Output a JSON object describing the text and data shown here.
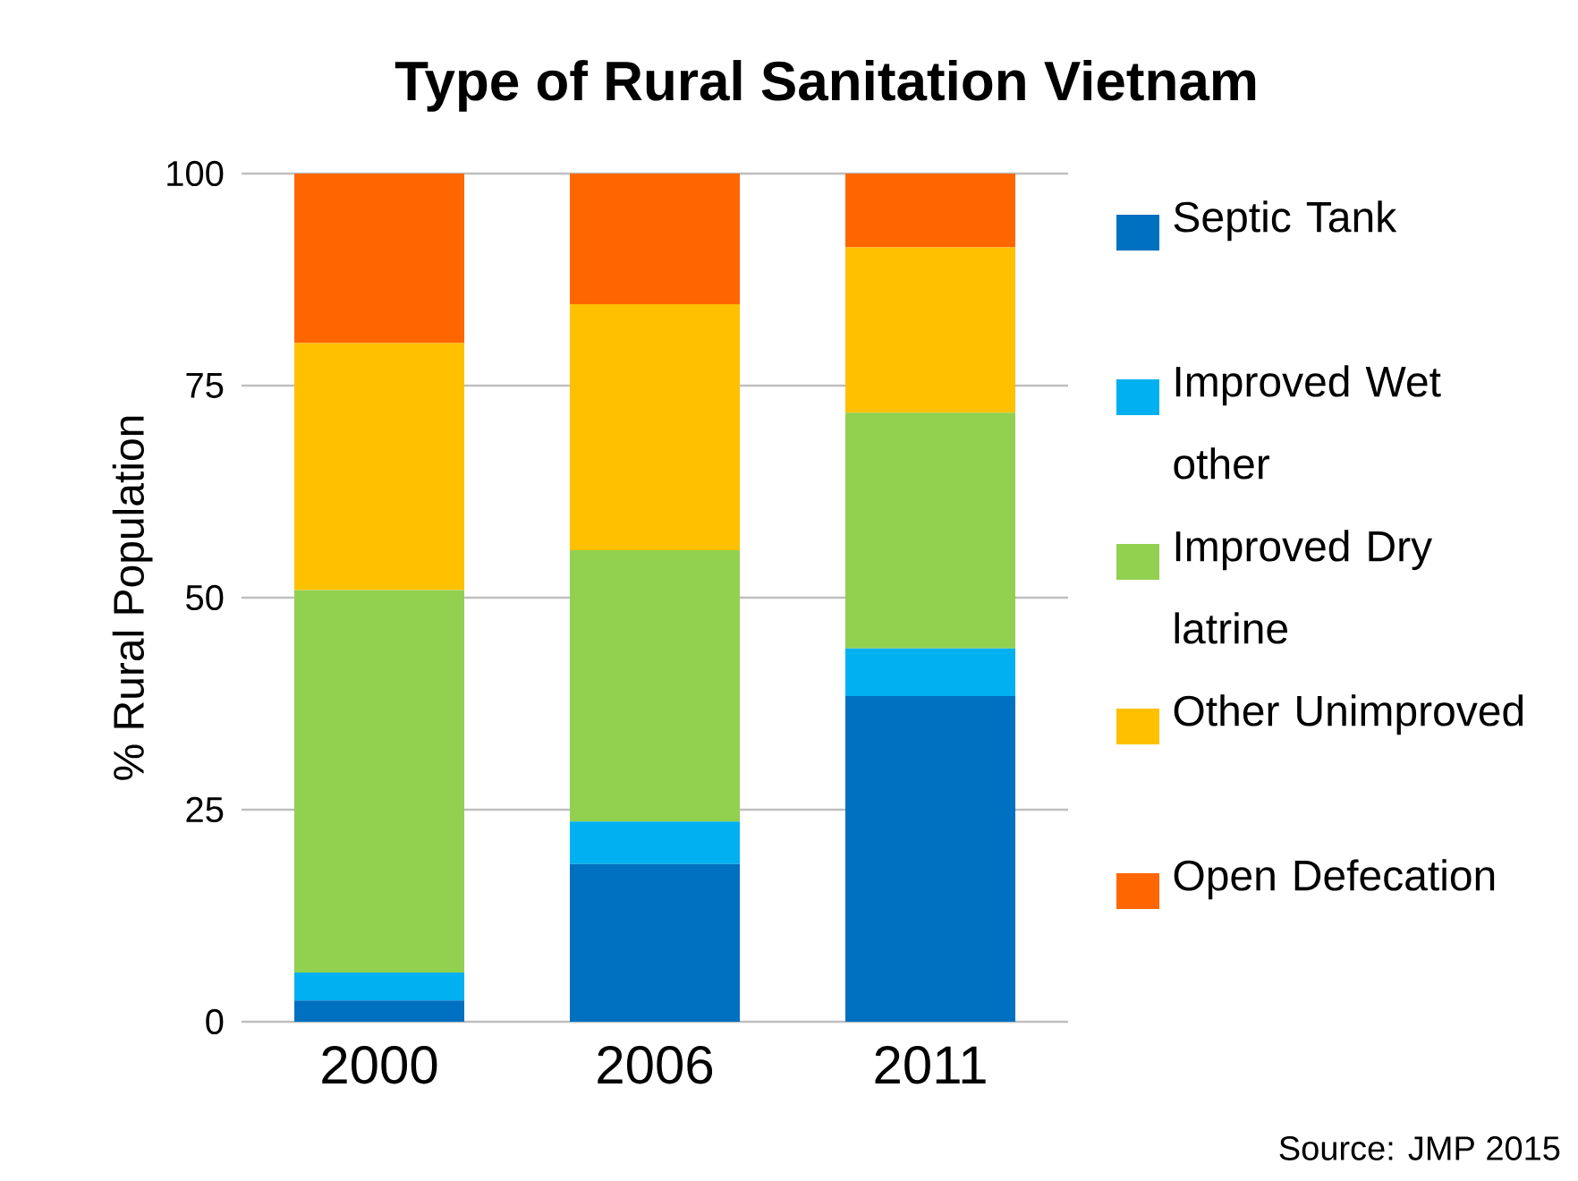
{
  "chart_data": {
    "type": "bar",
    "stacked": true,
    "title": "Type of Rural Sanitation Vietnam",
    "ylabel": "% Rural Population",
    "categories": [
      "2000",
      "2006",
      "2011"
    ],
    "series": [
      {
        "name": "Septic Tank",
        "color": "#0070c0",
        "values": [
          2.5,
          18.6,
          38.4
        ]
      },
      {
        "name": "Improved Wet other",
        "color": "#00b0f0",
        "values": [
          3.3,
          5.0,
          5.6
        ]
      },
      {
        "name": "Improved Dry latrine",
        "color": "#92d050",
        "values": [
          45.1,
          32.0,
          27.8
        ]
      },
      {
        "name": "Other Unimproved",
        "color": "#ffc000",
        "values": [
          29.1,
          29.0,
          19.5
        ]
      },
      {
        "name": "Open Defecation",
        "color": "#ff6600",
        "values": [
          20.0,
          15.4,
          8.7
        ]
      }
    ],
    "ylim": [
      0,
      100
    ],
    "yticks": [
      0,
      25,
      50,
      75,
      100
    ],
    "grid": "y",
    "legend": "right",
    "annotations": [
      "Source: JMP 2015"
    ]
  }
}
